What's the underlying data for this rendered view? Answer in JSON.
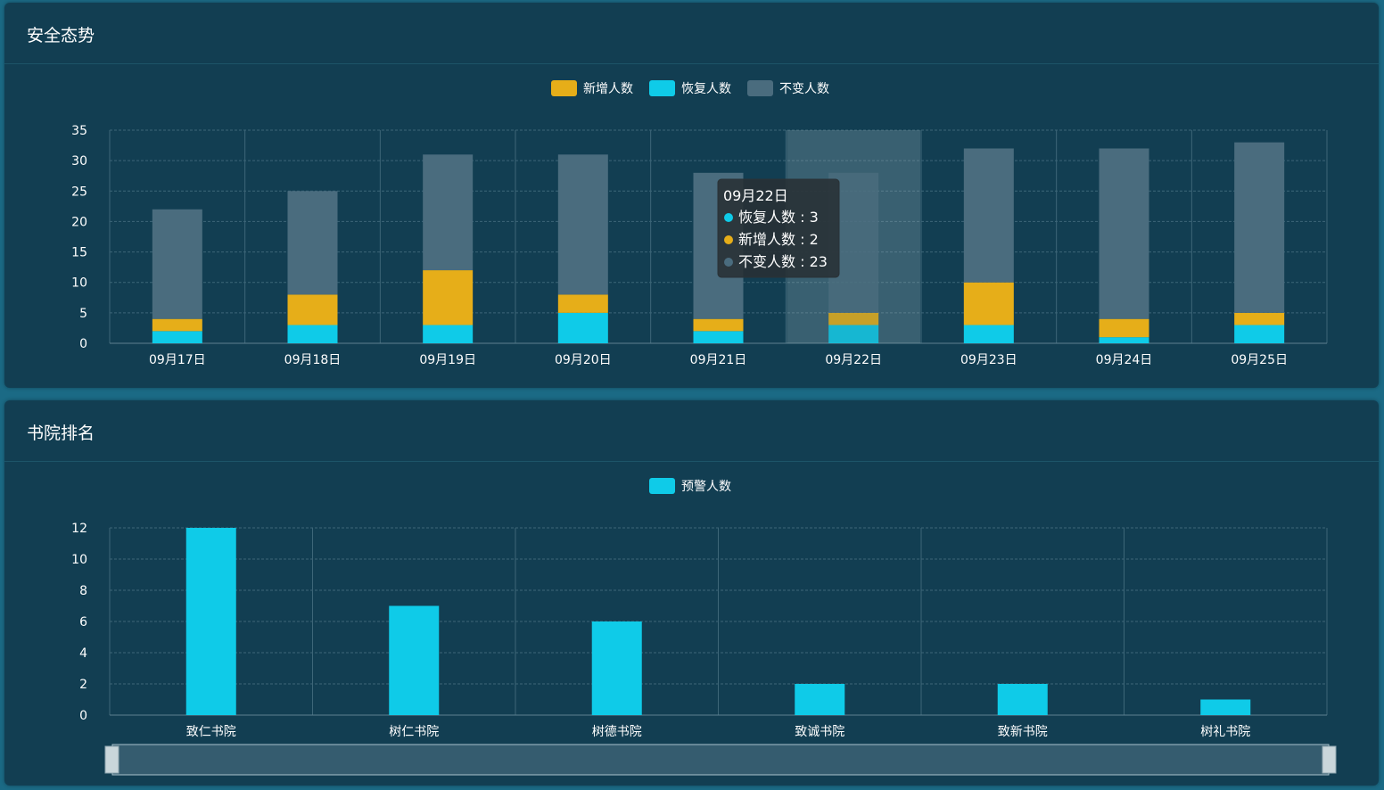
{
  "colors": {
    "new": "#e6ae19",
    "recovered": "#0fcbe8",
    "unchanged": "#4a6c7e",
    "warning": "#0fcbe8",
    "grid": "#3d6678",
    "axis_text": "#ffffff"
  },
  "panel1": {
    "title": "安全态势"
  },
  "panel2": {
    "title": "书院排名"
  },
  "tooltip": {
    "date": "09月22日",
    "lines": [
      {
        "label": "恢复人数",
        "sep": " : ",
        "value": "3",
        "color": "#0fcbe8"
      },
      {
        "label": "新增人数",
        "sep": " : ",
        "value": "2",
        "color": "#e6ae19"
      },
      {
        "label": "不变人数",
        "sep": " : ",
        "value": "23",
        "color": "#4a6c7e"
      }
    ]
  },
  "chart_data": [
    {
      "type": "bar",
      "stacked": true,
      "title": "安全态势",
      "categories": [
        "09月17日",
        "09月18日",
        "09月19日",
        "09月20日",
        "09月21日",
        "09月22日",
        "09月23日",
        "09月24日",
        "09月25日"
      ],
      "series": [
        {
          "name": "恢复人数",
          "values": [
            2,
            3,
            3,
            5,
            2,
            3,
            3,
            1,
            3
          ]
        },
        {
          "name": "新增人数",
          "values": [
            2,
            5,
            9,
            3,
            2,
            2,
            7,
            3,
            2
          ]
        },
        {
          "name": "不变人数",
          "values": [
            18,
            17,
            19,
            23,
            24,
            23,
            22,
            28,
            28
          ]
        }
      ],
      "legend": [
        "新增人数",
        "恢复人数",
        "不变人数"
      ],
      "ylim": [
        0,
        35
      ],
      "yticks": [
        0,
        5,
        10,
        15,
        20,
        25,
        30,
        35
      ],
      "highlight_index": 5,
      "grid": true,
      "legend_position": "top-center"
    },
    {
      "type": "bar",
      "title": "书院排名",
      "categories": [
        "致仁书院",
        "树仁书院",
        "树德书院",
        "致诚书院",
        "致新书院",
        "树礼书院"
      ],
      "series": [
        {
          "name": "预警人数",
          "values": [
            12,
            7,
            6,
            2,
            2,
            1
          ]
        }
      ],
      "legend": [
        "预警人数"
      ],
      "ylim": [
        0,
        12
      ],
      "yticks": [
        0,
        2,
        4,
        6,
        8,
        10,
        12
      ],
      "grid": true,
      "legend_position": "top-center",
      "has_zoom_slider": true
    }
  ]
}
